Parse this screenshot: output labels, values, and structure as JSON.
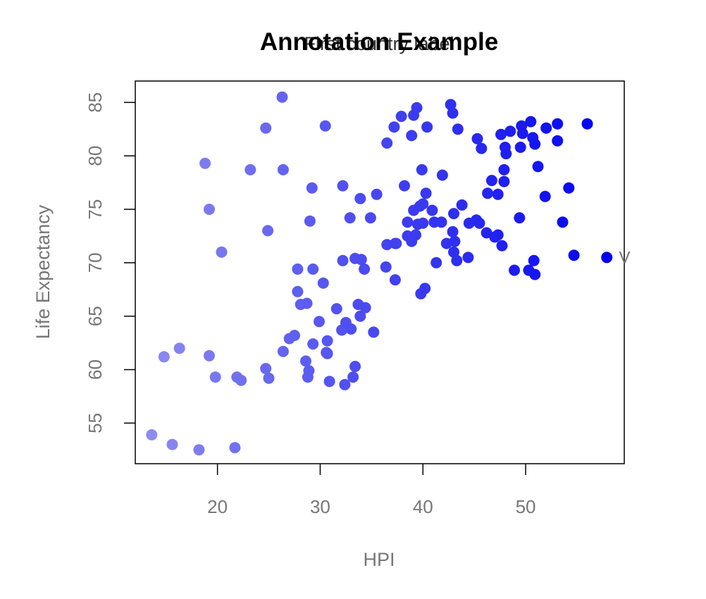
{
  "chart_data": {
    "type": "scatter",
    "title": "Annotation Example",
    "subtitle": "First country label",
    "xlabel": "HPI",
    "ylabel": "Life Expectancy",
    "xlim": [
      12,
      59.6
    ],
    "ylim": [
      51.2,
      87
    ],
    "xticks": [
      20,
      30,
      40,
      50
    ],
    "yticks": [
      55,
      60,
      65,
      70,
      75,
      80,
      85
    ],
    "grid": false,
    "legend": "none",
    "color_low": "#8c8cf0",
    "color_high": "#0000f0",
    "annotation": {
      "text": "V",
      "x": 59.5,
      "y": 70.5
    },
    "points": [
      [
        13.6,
        53.9
      ],
      [
        15.6,
        53.0
      ],
      [
        18.2,
        52.5
      ],
      [
        21.7,
        52.7
      ],
      [
        14.8,
        61.2
      ],
      [
        16.3,
        62.0
      ],
      [
        19.2,
        61.3
      ],
      [
        19.8,
        59.3
      ],
      [
        21.9,
        59.3
      ],
      [
        22.3,
        59.0
      ],
      [
        24.7,
        60.1
      ],
      [
        25.0,
        59.2
      ],
      [
        18.8,
        79.3
      ],
      [
        19.2,
        75.0
      ],
      [
        20.4,
        71.0
      ],
      [
        23.2,
        78.7
      ],
      [
        24.7,
        82.6
      ],
      [
        24.9,
        73.0
      ],
      [
        26.3,
        85.5
      ],
      [
        26.4,
        78.7
      ],
      [
        26.4,
        61.7
      ],
      [
        27.0,
        62.9
      ],
      [
        27.5,
        63.2
      ],
      [
        27.8,
        69.4
      ],
      [
        27.8,
        67.3
      ],
      [
        28.1,
        66.1
      ],
      [
        28.6,
        60.8
      ],
      [
        28.7,
        66.2
      ],
      [
        28.8,
        59.3
      ],
      [
        28.9,
        59.9
      ],
      [
        29.0,
        73.9
      ],
      [
        29.2,
        77.0
      ],
      [
        29.3,
        69.4
      ],
      [
        29.3,
        62.4
      ],
      [
        29.9,
        64.5
      ],
      [
        30.3,
        68.1
      ],
      [
        30.5,
        82.8
      ],
      [
        30.6,
        61.6
      ],
      [
        30.7,
        61.5
      ],
      [
        30.7,
        62.7
      ],
      [
        30.9,
        58.9
      ],
      [
        31.6,
        65.7
      ],
      [
        32.1,
        63.7
      ],
      [
        32.2,
        77.2
      ],
      [
        32.2,
        70.2
      ],
      [
        32.4,
        58.6
      ],
      [
        32.5,
        64.4
      ],
      [
        32.9,
        74.2
      ],
      [
        33.0,
        63.8
      ],
      [
        33.2,
        59.3
      ],
      [
        33.4,
        60.3
      ],
      [
        33.4,
        70.4
      ],
      [
        33.7,
        66.1
      ],
      [
        33.9,
        76.0
      ],
      [
        33.9,
        65.0
      ],
      [
        34.0,
        70.3
      ],
      [
        34.3,
        69.4
      ],
      [
        34.4,
        65.8
      ],
      [
        34.9,
        74.2
      ],
      [
        35.2,
        63.5
      ],
      [
        35.5,
        76.4
      ],
      [
        36.4,
        69.6
      ],
      [
        36.5,
        81.2
      ],
      [
        36.5,
        71.7
      ],
      [
        37.2,
        82.7
      ],
      [
        37.3,
        71.8
      ],
      [
        37.3,
        68.4
      ],
      [
        37.4,
        71.8
      ],
      [
        37.9,
        83.7
      ],
      [
        38.2,
        77.2
      ],
      [
        38.5,
        73.8
      ],
      [
        38.5,
        72.5
      ],
      [
        38.9,
        81.9
      ],
      [
        38.9,
        72.0
      ],
      [
        39.1,
        83.8
      ],
      [
        39.1,
        74.9
      ],
      [
        39.3,
        72.6
      ],
      [
        39.4,
        84.5
      ],
      [
        39.5,
        73.6
      ],
      [
        39.7,
        75.3
      ],
      [
        39.8,
        67.1
      ],
      [
        39.9,
        78.7
      ],
      [
        40.0,
        75.5
      ],
      [
        40.0,
        73.7
      ],
      [
        40.2,
        67.6
      ],
      [
        40.3,
        76.5
      ],
      [
        40.4,
        82.7
      ],
      [
        40.9,
        74.9
      ],
      [
        41.1,
        73.8
      ],
      [
        41.3,
        70.0
      ],
      [
        41.8,
        73.8
      ],
      [
        41.9,
        78.2
      ],
      [
        42.3,
        71.8
      ],
      [
        42.7,
        84.8
      ],
      [
        42.9,
        84.0
      ],
      [
        42.9,
        72.9
      ],
      [
        43.0,
        71.0
      ],
      [
        43.0,
        74.6
      ],
      [
        43.1,
        72.0
      ],
      [
        43.3,
        70.2
      ],
      [
        43.4,
        82.5
      ],
      [
        43.8,
        75.4
      ],
      [
        44.4,
        70.5
      ],
      [
        44.5,
        73.7
      ],
      [
        45.2,
        74.0
      ],
      [
        45.3,
        81.6
      ],
      [
        45.5,
        73.7
      ],
      [
        45.7,
        80.7
      ],
      [
        46.2,
        72.8
      ],
      [
        46.3,
        76.5
      ],
      [
        46.7,
        77.7
      ],
      [
        47.0,
        72.4
      ],
      [
        47.3,
        72.6
      ],
      [
        47.3,
        76.4
      ],
      [
        47.6,
        82.0
      ],
      [
        47.7,
        71.6
      ],
      [
        47.9,
        78.7
      ],
      [
        47.9,
        77.6
      ],
      [
        48.0,
        80.8
      ],
      [
        48.1,
        80.2
      ],
      [
        48.5,
        82.3
      ],
      [
        48.9,
        69.3
      ],
      [
        49.4,
        74.2
      ],
      [
        49.5,
        80.8
      ],
      [
        49.6,
        82.8
      ],
      [
        49.7,
        82.1
      ],
      [
        50.3,
        69.3
      ],
      [
        50.5,
        83.2
      ],
      [
        50.7,
        81.7
      ],
      [
        50.8,
        70.2
      ],
      [
        50.9,
        68.9
      ],
      [
        50.9,
        81.1
      ],
      [
        51.2,
        79.0
      ],
      [
        51.9,
        76.2
      ],
      [
        52.0,
        82.6
      ],
      [
        53.1,
        83.0
      ],
      [
        53.1,
        81.4
      ],
      [
        53.6,
        73.8
      ],
      [
        54.2,
        77.0
      ],
      [
        54.7,
        70.7
      ],
      [
        56.0,
        83.0
      ],
      [
        57.9,
        70.5
      ]
    ]
  }
}
